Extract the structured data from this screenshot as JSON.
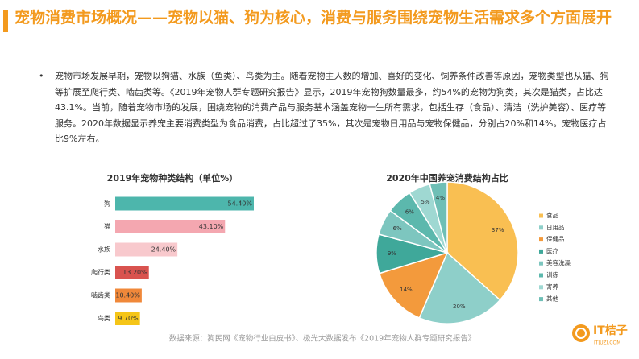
{
  "header": {
    "title": "宠物消费市场概况——宠物以猫、狗为核心，消费与服务围绕宠物生活需求多个方面展开"
  },
  "body": {
    "bullet": "•",
    "text": "宠物市场发展早期，宠物以狗猫、水族（鱼类）、鸟类为主。随着宠物主人数的增加、喜好的变化、饲养条件改善等原因，宠物类型也从猫、狗等扩展至爬行类、啮齿类等。《2019年宠物人群专题研究报告》显示，2019年宠物狗数量最多，约54%的宠物为狗类，其次是猫类，占比达43.1%。当前，随着宠物市场的发展，围绕宠物的消费产品与服务基本涵盖宠物一生所有需求，包括生存（食品）、清洁（洗护美容）、医疗等服务。2020年数据显示养宠主要消费类型为食品消费，占比超过了35%，其次是宠物日用品与宠物保健品，分别占20%和14%。宠物医疗占比9%左右。"
  },
  "chart_data": [
    {
      "type": "bar",
      "title": "2019年宠物种类结构（单位%）",
      "categories": [
        "狗",
        "猫",
        "水族",
        "爬行类",
        "啮齿类",
        "鸟类"
      ],
      "values": [
        54.4,
        43.1,
        24.4,
        13.2,
        10.4,
        9.7
      ],
      "value_labels": [
        "54.40%",
        "43.10%",
        "24.40%",
        "13.20%",
        "10.40%",
        "9.70%"
      ],
      "colors": [
        "#4db6ac",
        "#f4a7b0",
        "#f8c9cd",
        "#d9534f",
        "#f0883a",
        "#f5c518"
      ]
    },
    {
      "type": "pie",
      "title": "2020年中国养宠消费结构占比",
      "categories": [
        "食品",
        "日用品",
        "保健品",
        "医疗",
        "美容洗澡",
        "训练",
        "寄养",
        "其他"
      ],
      "values": [
        37,
        20,
        14,
        9,
        6,
        6,
        5,
        4
      ],
      "value_labels": [
        "37%",
        "20%",
        "14%",
        "9%",
        "6%",
        "6%",
        "5%",
        "4%"
      ],
      "colors": [
        "#f9bf52",
        "#8ecfc9",
        "#f39a3c",
        "#3fa89a",
        "#7dc6bf",
        "#5cb8ad",
        "#9fd8d2",
        "#6fbfb6"
      ]
    }
  ],
  "footer": {
    "source": "数据来源：狗民网《宠物行业白皮书》、极光大数据发布《2019年宠物人群专题研究报告》",
    "logo": "IT桔子",
    "logo_sub": "ITJUZI.COM"
  }
}
